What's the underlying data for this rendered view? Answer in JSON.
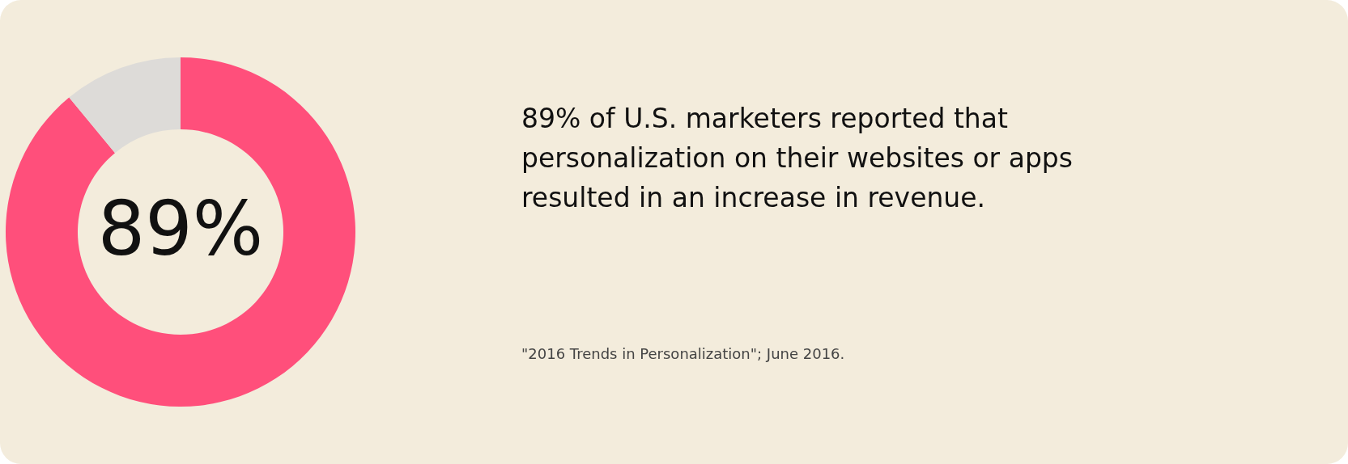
{
  "chart_data": {
    "type": "donut",
    "title": "89% of U.S. marketers reported that personalization on their websites or apps resulted in an increase in revenue.",
    "categories": [
      null,
      null
    ],
    "values": [
      89,
      11
    ],
    "colors": [
      "#ff4f7b",
      "#dddbd8"
    ],
    "value_labels": [
      "89%",
      null
    ],
    "annotations": [
      "\"2016 Trends in Personalization\"; June 2016."
    ]
  }
}
